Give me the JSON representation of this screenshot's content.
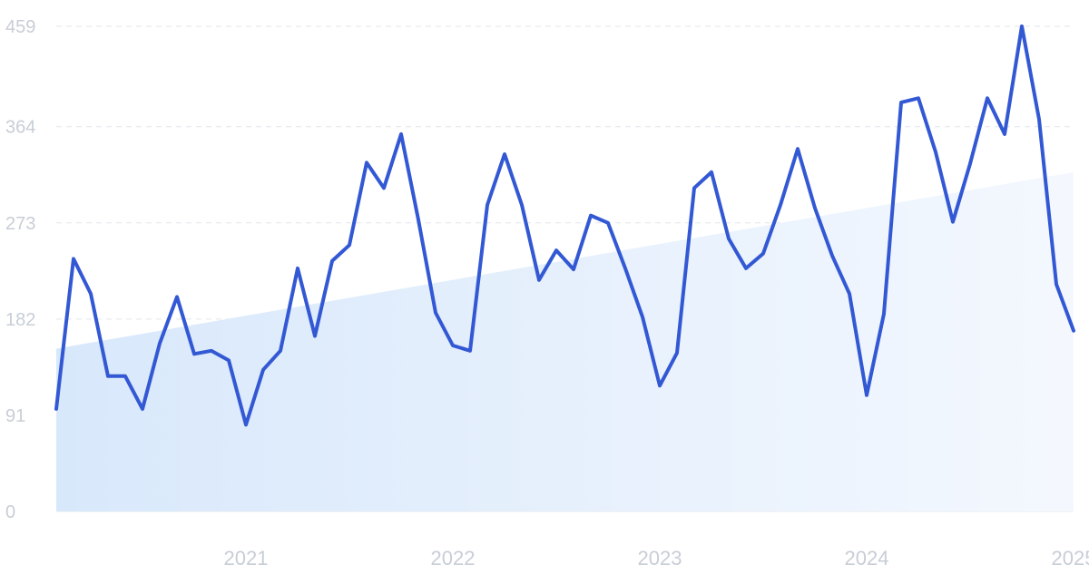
{
  "chart_data": {
    "type": "line",
    "title": "",
    "xlabel": "",
    "ylabel": "",
    "y_ticks": [
      0,
      91,
      182,
      273,
      364,
      459
    ],
    "ylim": [
      0,
      459
    ],
    "x_ticks": [
      "2021",
      "2022",
      "2023",
      "2024",
      "2025"
    ],
    "grid": "horizontal dashed",
    "colors": {
      "line": "#3358d4",
      "trend_fill_start": "#d8e8fb",
      "trend_fill_end": "#f4f8fe",
      "grid": "#e2e5ea",
      "tick_label": "#c8cdd6"
    },
    "x": [
      "2020-08",
      "2020-09",
      "2020-10",
      "2020-11",
      "2020-12",
      "2021-01",
      "2021-02",
      "2021-03",
      "2021-04",
      "2021-05",
      "2021-06",
      "2021-07",
      "2021-08",
      "2021-09",
      "2021-10",
      "2021-11",
      "2021-12",
      "2022-01",
      "2022-02",
      "2022-03",
      "2022-04",
      "2022-05",
      "2022-06",
      "2022-07",
      "2022-08",
      "2022-09",
      "2022-10",
      "2022-11",
      "2022-12",
      "2023-01",
      "2023-02",
      "2023-03",
      "2023-04",
      "2023-05",
      "2023-06",
      "2023-07",
      "2023-08",
      "2023-09",
      "2023-10",
      "2023-11",
      "2023-12",
      "2024-01",
      "2024-02",
      "2024-03",
      "2024-04",
      "2024-05",
      "2024-06",
      "2024-07",
      "2024-08",
      "2024-09",
      "2024-10",
      "2024-11",
      "2024-12",
      "2025-01",
      "2025-02",
      "2025-03",
      "2025-04",
      "2025-05",
      "2025-06",
      "2025-07"
    ],
    "series": [
      {
        "values": [
          97,
          239,
          206,
          128,
          128,
          97,
          159,
          203,
          149,
          152,
          143,
          82,
          134,
          152,
          230,
          166,
          237,
          252,
          330,
          306,
          357,
          276,
          188,
          157,
          152,
          290,
          338,
          290,
          219,
          247,
          229,
          280,
          273,
          230,
          184,
          119,
          150,
          306,
          321,
          258,
          230,
          244,
          290,
          343,
          287,
          242,
          206,
          110,
          187,
          387,
          391,
          340,
          274,
          329,
          391,
          357,
          459,
          371,
          215,
          171
        ]
      }
    ],
    "trend": {
      "type": "area",
      "start": 154,
      "end": 321
    }
  }
}
